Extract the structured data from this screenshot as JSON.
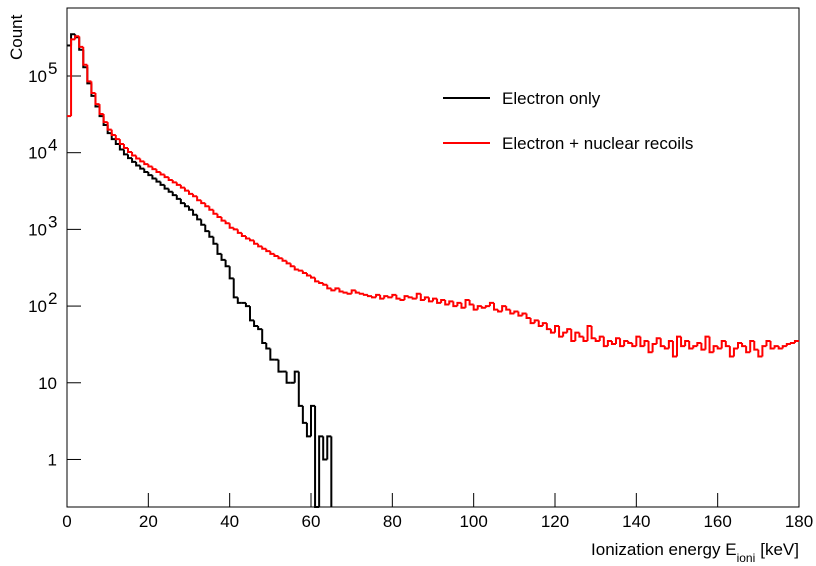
{
  "chart_data": {
    "type": "histogram",
    "y_label": "Count",
    "x_label": "Ionization energy E",
    "x_label_sub": "ioni",
    "x_label_suffix": "[keV]",
    "log_y": true,
    "legend": "upper right",
    "xlim": [
      0,
      180
    ],
    "ylim": [
      0.24,
      770000
    ],
    "xticks": [
      0,
      20,
      40,
      60,
      80,
      100,
      120,
      140,
      160,
      180
    ],
    "yticks": [
      1,
      10,
      {
        "value": 100,
        "label": "10",
        "exponent": "2"
      },
      {
        "value": 1000,
        "label": "10",
        "exponent": "3"
      },
      {
        "value": 10000,
        "label": "10",
        "exponent": "4"
      },
      {
        "value": 100000,
        "label": "10",
        "exponent": "5"
      }
    ],
    "bins": [
      0,
      1,
      2,
      3,
      4,
      5,
      6,
      7,
      8,
      9,
      10,
      11,
      12,
      13,
      14,
      15,
      16,
      17,
      18,
      19,
      20,
      21,
      22,
      23,
      24,
      25,
      26,
      27,
      28,
      29,
      30,
      31,
      32,
      33,
      34,
      35,
      36,
      37,
      38,
      39,
      40,
      41,
      42,
      43,
      44,
      45,
      46,
      47,
      48,
      49,
      50,
      51,
      52,
      53,
      54,
      55,
      56,
      57,
      58,
      59,
      60,
      61,
      62,
      63,
      64,
      65,
      66,
      67,
      68,
      69,
      70,
      71,
      72,
      73,
      74,
      75,
      76,
      77,
      78,
      79,
      80,
      81,
      82,
      83,
      84,
      85,
      86,
      87,
      88,
      89,
      90,
      91,
      92,
      93,
      94,
      95,
      96,
      97,
      98,
      99,
      100,
      101,
      102,
      103,
      104,
      105,
      106,
      107,
      108,
      109,
      110,
      111,
      112,
      113,
      114,
      115,
      116,
      117,
      118,
      119,
      120,
      121,
      122,
      123,
      124,
      125,
      126,
      127,
      128,
      129,
      130,
      131,
      132,
      133,
      134,
      135,
      136,
      137,
      138,
      139,
      140,
      141,
      142,
      143,
      144,
      145,
      146,
      147,
      148,
      149,
      150,
      151,
      152,
      153,
      154,
      155,
      156,
      157,
      158,
      159,
      160,
      161,
      162,
      163,
      164,
      165,
      166,
      167,
      168,
      169,
      170,
      171,
      172,
      173,
      174,
      175,
      176,
      177,
      178,
      179,
      180
    ],
    "series": [
      {
        "name": "Electron only",
        "color": "#000000",
        "values": [
          250000,
          350000,
          320000,
          220000,
          130000,
          80000,
          55000,
          40000,
          30000,
          23000,
          18000,
          15000,
          13000,
          11000,
          9500,
          8500,
          7600,
          6800,
          6200,
          5600,
          5100,
          4600,
          4200,
          3800,
          3400,
          3100,
          2800,
          2500,
          2200,
          2000,
          1800,
          1550,
          1350,
          1150,
          950,
          800,
          650,
          480,
          400,
          330,
          230,
          130,
          110,
          110,
          100,
          65,
          55,
          50,
          33,
          28,
          20,
          20,
          14,
          14,
          10,
          10,
          14,
          5,
          3,
          2,
          5,
          0,
          2,
          1,
          2,
          null,
          null,
          null,
          null,
          null,
          null,
          null,
          null,
          null,
          null,
          null,
          null,
          null,
          null,
          null,
          null,
          null,
          null,
          null,
          null,
          null,
          null,
          null,
          null,
          null,
          null,
          null,
          null,
          null,
          null,
          null,
          null,
          null,
          null,
          null,
          null,
          null,
          null,
          null,
          null,
          null,
          null,
          null,
          null,
          null,
          null,
          null,
          null,
          null,
          null,
          null,
          null,
          null,
          null,
          null,
          null,
          null,
          null,
          null,
          null,
          null,
          null,
          null,
          null,
          null,
          null,
          null,
          null,
          null,
          null,
          null,
          null,
          null,
          null,
          null,
          null,
          null,
          null,
          null,
          null,
          null,
          null,
          null,
          null,
          null,
          null,
          null,
          null,
          null,
          null,
          null,
          null,
          null,
          null,
          null,
          null,
          null,
          null,
          null,
          null,
          null,
          null,
          null,
          null,
          null,
          null,
          null,
          null,
          null,
          null,
          null,
          null,
          null,
          null,
          null,
          null,
          null
        ]
      },
      {
        "name": "Electron + nuclear recoils",
        "color": "#ff0000",
        "values": [
          30000,
          300000,
          330000,
          240000,
          140000,
          85000,
          60000,
          43000,
          32000,
          25000,
          20000,
          17000,
          15000,
          13000,
          11500,
          10200,
          9200,
          8400,
          7700,
          7100,
          6600,
          6100,
          5600,
          5200,
          4800,
          4400,
          4100,
          3800,
          3500,
          3200,
          2900,
          2700,
          2400,
          2200,
          2000,
          1800,
          1600,
          1450,
          1300,
          1200,
          1050,
          1000,
          900,
          820,
          760,
          720,
          650,
          600,
          560,
          520,
          480,
          450,
          420,
          390,
          360,
          330,
          300,
          290,
          270,
          250,
          235,
          210,
          200,
          190,
          170,
          160,
          170,
          155,
          150,
          145,
          160,
          150,
          145,
          140,
          135,
          130,
          140,
          125,
          135,
          130,
          140,
          125,
          120,
          135,
          130,
          125,
          145,
          120,
          130,
          115,
          125,
          110,
          120,
          105,
          115,
          100,
          110,
          95,
          120,
          105,
          90,
          100,
          95,
          100,
          110,
          90,
          85,
          100,
          90,
          80,
          85,
          75,
          80,
          70,
          60,
          65,
          55,
          60,
          50,
          45,
          55,
          40,
          45,
          50,
          35,
          45,
          40,
          35,
          55,
          38,
          35,
          40,
          30,
          35,
          32,
          38,
          30,
          35,
          33,
          30,
          40,
          30,
          35,
          25,
          32,
          38,
          30,
          28,
          35,
          22,
          40,
          30,
          35,
          28,
          30,
          33,
          27,
          40,
          25,
          30,
          28,
          35,
          30,
          22,
          28,
          33,
          30,
          25,
          35,
          27,
          22,
          30,
          35,
          28,
          30,
          28,
          30,
          32,
          33,
          35
        ]
      }
    ]
  }
}
